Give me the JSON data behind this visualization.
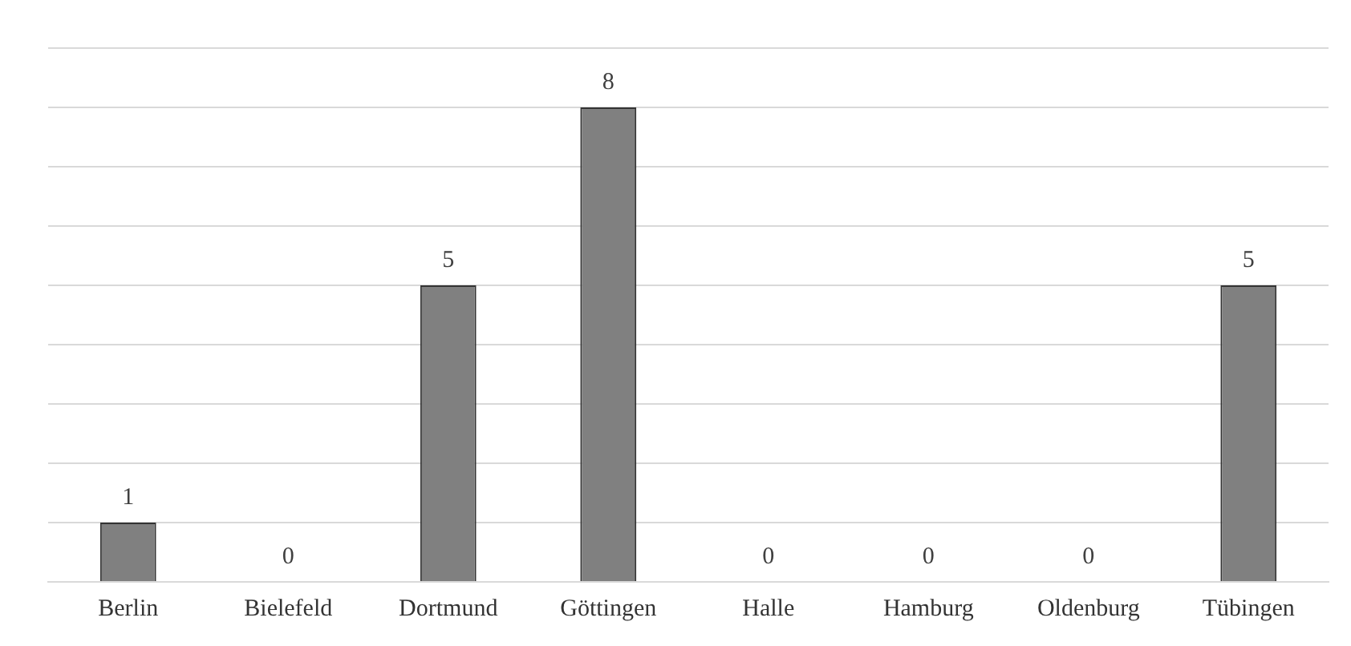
{
  "chart_data": {
    "type": "bar",
    "categories": [
      "Berlin",
      "Bielefeld",
      "Dortmund",
      "Göttingen",
      "Halle",
      "Hamburg",
      "Oldenburg",
      "Tübingen"
    ],
    "values": [
      1,
      0,
      5,
      8,
      0,
      0,
      0,
      5
    ],
    "color": "#808080",
    "data_labels": true,
    "grid": "y",
    "tick_labels": "x",
    "ylim": [
      0,
      9
    ],
    "yticks": [
      {
        "value": 0,
        "label": null
      },
      {
        "value": 1,
        "label": null
      },
      {
        "value": 2,
        "label": null
      },
      {
        "value": 3,
        "label": null
      },
      {
        "value": 4,
        "label": null
      },
      {
        "value": 5,
        "label": null
      },
      {
        "value": 6,
        "label": null
      },
      {
        "value": 7,
        "label": null
      },
      {
        "value": 8,
        "label": null
      },
      {
        "value": 9,
        "label": null
      }
    ]
  }
}
